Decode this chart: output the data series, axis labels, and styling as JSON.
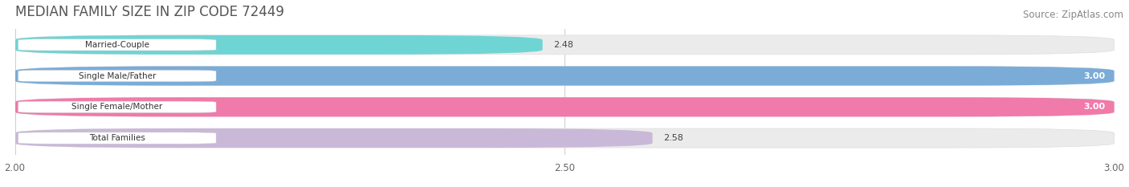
{
  "title": "MEDIAN FAMILY SIZE IN ZIP CODE 72449",
  "source": "Source: ZipAtlas.com",
  "categories": [
    "Married-Couple",
    "Single Male/Father",
    "Single Female/Mother",
    "Total Families"
  ],
  "values": [
    2.48,
    3.0,
    3.0,
    2.58
  ],
  "bar_colors": [
    "#6fd4d4",
    "#7bacd8",
    "#f07aaa",
    "#c9b8d8"
  ],
  "bar_bg_color": "#ebebeb",
  "xmin": 2.0,
  "xmax": 3.0,
  "xticks": [
    2.0,
    2.5,
    3.0
  ],
  "xtick_labels": [
    "2.00",
    "2.50",
    "3.00"
  ],
  "title_fontsize": 12,
  "source_fontsize": 8.5,
  "bar_height": 0.62,
  "figsize": [
    14.06,
    2.33
  ],
  "dpi": 100,
  "bg_color": "#ffffff"
}
